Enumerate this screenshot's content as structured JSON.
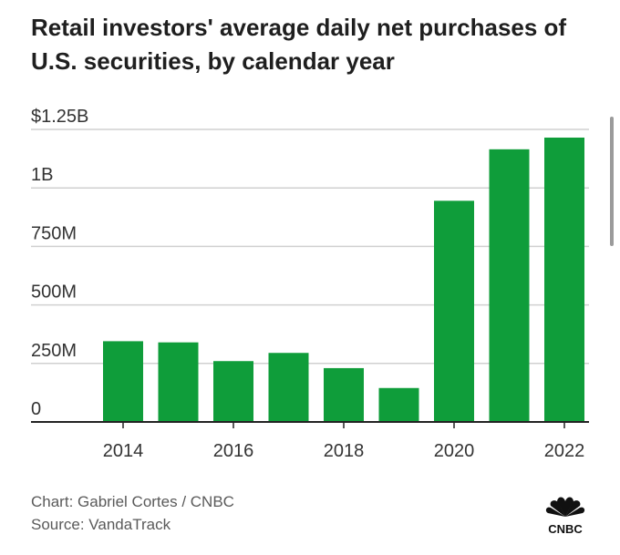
{
  "chart_data": {
    "type": "bar",
    "title": "Retail investors' average daily net purchases of U.S. securities, by calendar year",
    "categories": [
      "2014",
      "2015",
      "2016",
      "2017",
      "2018",
      "2019",
      "2020",
      "2021",
      "2022"
    ],
    "values": [
      0.345,
      0.34,
      0.26,
      0.295,
      0.23,
      0.145,
      0.945,
      1.165,
      1.215
    ],
    "unit": "$B",
    "ylim": [
      0,
      1.25
    ],
    "yticks": [
      {
        "value": 0,
        "label": "0"
      },
      {
        "value": 0.25,
        "label": "250M"
      },
      {
        "value": 0.5,
        "label": "500M"
      },
      {
        "value": 0.75,
        "label": "750M"
      },
      {
        "value": 1.0,
        "label": "1B"
      },
      {
        "value": 1.25,
        "label": "$1.25B"
      }
    ],
    "xtick_labels": [
      "2014",
      "2016",
      "2018",
      "2020",
      "2022"
    ],
    "grid": true,
    "bar_color": "#0f9d3a",
    "xlabel": "",
    "ylabel": ""
  },
  "footer": {
    "credit": "Chart: Gabriel Cortes / CNBC",
    "source": "Source: VandaTrack",
    "logo_text": "CNBC"
  },
  "colors": {
    "grid": "#d0d0d0",
    "axis": "#222222",
    "logo": "#111111"
  }
}
